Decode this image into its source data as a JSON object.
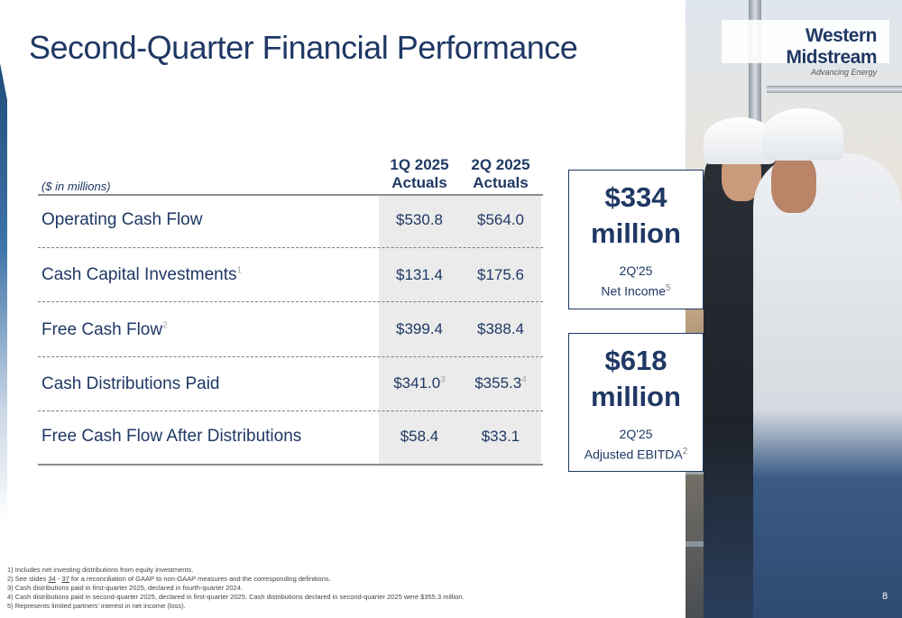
{
  "slide": {
    "title": "Second-Quarter Financial Performance",
    "page_number": "8"
  },
  "logo": {
    "brand": "Western Midstream",
    "tagline": "Advancing Energy"
  },
  "table": {
    "unit_label": "($ in millions)",
    "columns": [
      {
        "line1": "1Q 2025",
        "line2": "Actuals"
      },
      {
        "line1": "2Q 2025",
        "line2": "Actuals"
      }
    ],
    "rows": [
      {
        "label": "Operating Cash Flow",
        "label_sup": "",
        "q1": "$530.8",
        "q1_sup": "",
        "q2": "$564.0",
        "q2_sup": ""
      },
      {
        "label": "Cash Capital Investments",
        "label_sup": "1",
        "q1": "$131.4",
        "q1_sup": "",
        "q2": "$175.6",
        "q2_sup": ""
      },
      {
        "label": "Free Cash Flow",
        "label_sup": "2",
        "q1": "$399.4",
        "q1_sup": "",
        "q2": "$388.4",
        "q2_sup": ""
      },
      {
        "label": "Cash Distributions Paid",
        "label_sup": "",
        "q1": "$341.0",
        "q1_sup": "3",
        "q2": "$355.3",
        "q2_sup": "4"
      },
      {
        "label": "Free Cash Flow After Distributions",
        "label_sup": "",
        "q1": "$58.4",
        "q1_sup": "",
        "q2": "$33.1",
        "q2_sup": ""
      }
    ]
  },
  "callouts": [
    {
      "amount": "$334",
      "unit": "million",
      "period": "2Q'25",
      "metric": "Net Income",
      "metric_sup": "5"
    },
    {
      "amount": "$618",
      "unit": "million",
      "period": "2Q'25",
      "metric": "Adjusted EBITDA",
      "metric_sup": "2"
    }
  ],
  "footnotes": {
    "n1": "1) Includes net investing distributions from equity investments.",
    "n2_pre": "2) See slides ",
    "n2_a": "34",
    "n2_mid": " - ",
    "n2_b": "37",
    "n2_post": " for a reconciliation of GAAP to non-GAAP measures and the corresponding definitions.",
    "n3": "3) Cash distributions paid in first-quarter 2025, declared in fourth-quarter 2024.",
    "n4": "4) Cash distributions paid in second-quarter 2025, declared in first-quarter 2025. Cash distributions declared in second-quarter 2025 were $355.3 million.",
    "n5": "5) Represents limited partners' interest in net income (loss)."
  },
  "colors": {
    "primary_navy": "#1f3864",
    "shade_gray": "#ebebeb"
  }
}
